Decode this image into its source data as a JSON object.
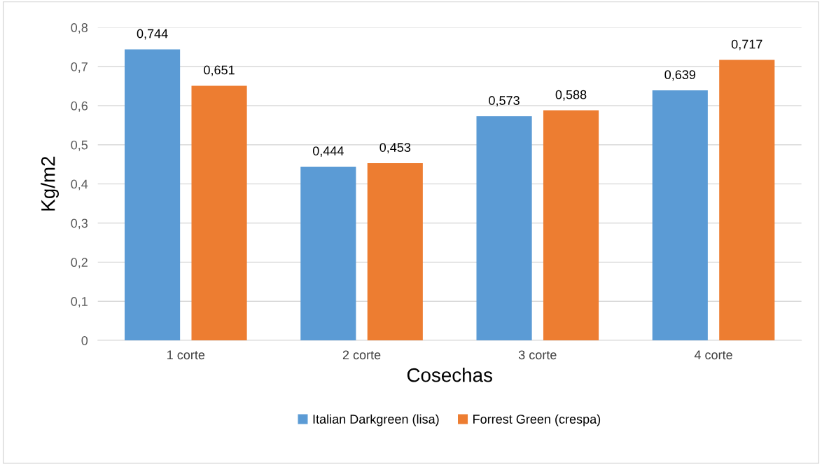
{
  "chart_data": {
    "type": "bar",
    "xlabel": "Cosechas",
    "ylabel": "Kg/m2",
    "categories": [
      "1 corte",
      "2 corte",
      "3 corte",
      "4 corte"
    ],
    "series": [
      {
        "name": "Italian Darkgreen (lisa)",
        "color": "#5b9bd5",
        "values": [
          0.744,
          0.444,
          0.573,
          0.639
        ],
        "value_labels": [
          "0,744",
          "0,444",
          "0,573",
          "0,639"
        ]
      },
      {
        "name": "Forrest Green (crespa)",
        "color": "#ed7d31",
        "values": [
          0.651,
          0.453,
          0.588,
          0.717
        ],
        "value_labels": [
          "0,651",
          "0,453",
          "0,588",
          "0,717"
        ]
      }
    ],
    "ylim": [
      0,
      0.8
    ],
    "yticks": [
      0,
      {
        "value": 0.1,
        "label": "0,1"
      },
      {
        "value": 0.2,
        "label": "0,2"
      },
      {
        "value": 0.3,
        "label": "0,3"
      },
      {
        "value": 0.4,
        "label": "0,4"
      },
      {
        "value": 0.5,
        "label": "0,5"
      },
      {
        "value": 0.6,
        "label": "0,6"
      },
      {
        "value": 0.7,
        "label": "0,7"
      },
      {
        "value": 0.8,
        "label": "0,8"
      }
    ],
    "grid": "y",
    "legend": "bottom"
  }
}
